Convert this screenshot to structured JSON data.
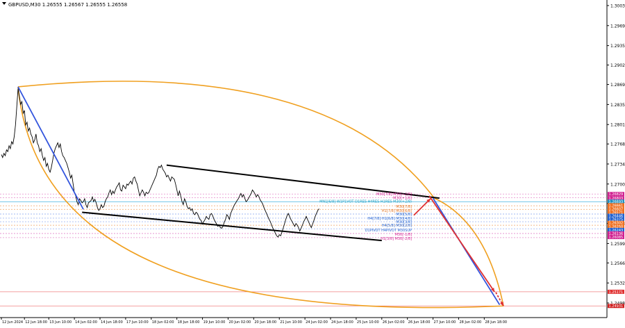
{
  "window": {
    "symbol_info": "GBPUSD,M30  1.26555 1.26567 1.26555 1.26558"
  },
  "chart_data": {
    "type": "line",
    "title": "",
    "xlabel": "",
    "ylabel": "",
    "ylim": [
      1.248,
      1.3045
    ],
    "y_ticks": [
      "1.30030",
      "1.29690",
      "1.29350",
      "1.29020",
      "1.28690",
      "1.28350",
      "1.28010",
      "1.27680",
      "1.27340",
      "1.27000",
      "1.26670",
      "1.26330",
      "1.25990",
      "1.25660",
      "1.25320",
      "1.24980"
    ],
    "x_ticks": [
      {
        "i": 0,
        "label": "12 Jun 2024"
      },
      {
        "i": 18,
        "label": "12 Jun 18:00"
      },
      {
        "i": 37,
        "label": "13 Jun 10:00"
      },
      {
        "i": 57,
        "label": "14 Jun 02:00"
      },
      {
        "i": 77,
        "label": "14 Jun 18:00"
      },
      {
        "i": 97,
        "label": "17 Jun 10:00"
      },
      {
        "i": 117,
        "label": "18 Jun 02:00"
      },
      {
        "i": 137,
        "label": "18 Jun 18:00"
      },
      {
        "i": 157,
        "label": "19 Jun 10:00"
      },
      {
        "i": 177,
        "label": "20 Jun 02:00"
      },
      {
        "i": 197,
        "label": "20 Jun 18:00"
      },
      {
        "i": 217,
        "label": "21 Jun 10:00"
      },
      {
        "i": 237,
        "label": "24 Jun 02:00"
      },
      {
        "i": 257,
        "label": "24 Jun 18:00"
      },
      {
        "i": 277,
        "label": "25 Jun 10:00"
      },
      {
        "i": 297,
        "label": "26 Jun 02:00"
      },
      {
        "i": 317,
        "label": "26 Jun 18:00"
      },
      {
        "i": 337,
        "label": "27 Jun 10:00"
      },
      {
        "i": 357,
        "label": "28 Jun 02:00"
      },
      {
        "i": 377,
        "label": "28 Jun 18:00"
      }
    ],
    "series": [
      {
        "color": "#000000",
        "y": [
          1.275,
          1.2745,
          1.2752,
          1.2748,
          1.2758,
          1.2755,
          1.2765,
          1.276,
          1.2772,
          1.2768,
          1.278,
          1.28,
          1.283,
          1.2862,
          1.285,
          1.2835,
          1.284,
          1.282,
          1.2825,
          1.28,
          1.2805,
          1.279,
          1.2795,
          1.2785,
          1.278,
          1.277,
          1.2775,
          1.2785,
          1.277,
          1.2765,
          1.2755,
          1.276,
          1.2748,
          1.274,
          1.2745,
          1.273,
          1.2735,
          1.2725,
          1.272,
          1.2728,
          1.274,
          1.2752,
          1.276,
          1.2765,
          1.277,
          1.2762,
          1.2768,
          1.2755,
          1.2748,
          1.2745,
          1.274,
          1.2735,
          1.2728,
          1.272,
          1.271,
          1.2715,
          1.27,
          1.2685,
          1.268,
          1.267,
          1.2665,
          1.2675,
          1.2672,
          1.2668,
          1.267,
          1.2675,
          1.2665,
          1.266,
          1.2668,
          1.267,
          1.2672,
          1.2678,
          1.267,
          1.2674,
          1.2668,
          1.266,
          1.2655,
          1.2658,
          1.2665,
          1.266,
          1.2662,
          1.267,
          1.2675,
          1.2678,
          1.2685,
          1.269,
          1.2682,
          1.2688,
          1.2684,
          1.269,
          1.2695,
          1.2698,
          1.2702,
          1.269,
          1.2688,
          1.2698,
          1.2695,
          1.2692,
          1.27,
          1.2698,
          1.2702,
          1.2705,
          1.27,
          1.271,
          1.2712,
          1.2705,
          1.27,
          1.269,
          1.268,
          1.2685,
          1.269,
          1.2686,
          1.268,
          1.2686,
          1.2684,
          1.2685,
          1.269,
          1.2695,
          1.27,
          1.2705,
          1.271,
          1.2715,
          1.2725,
          1.273,
          1.2728,
          1.2732,
          1.2725,
          1.2722,
          1.2718,
          1.2712,
          1.2715,
          1.271,
          1.2705,
          1.2712,
          1.271,
          1.2708,
          1.27,
          1.269,
          1.268,
          1.2688,
          1.268,
          1.267,
          1.2665,
          1.2675,
          1.267,
          1.2662,
          1.2658,
          1.266,
          1.2655,
          1.2658,
          1.265,
          1.2648,
          1.2652,
          1.265,
          1.2645,
          1.264,
          1.2638,
          1.2632,
          1.2636,
          1.264,
          1.2645,
          1.2642,
          1.264,
          1.2648,
          1.265,
          1.2646,
          1.264,
          1.2636,
          1.2632,
          1.2628,
          1.263,
          1.2626,
          1.2625,
          1.2628,
          1.2635,
          1.264,
          1.2648,
          1.2645,
          1.264,
          1.265,
          1.2655,
          1.266,
          1.2665,
          1.2668,
          1.2672,
          1.2675,
          1.268,
          1.2684,
          1.2678,
          1.2682,
          1.2676,
          1.267,
          1.2672,
          1.2676,
          1.268,
          1.2684,
          1.269,
          1.2687,
          1.2683,
          1.2678,
          1.2682,
          1.2679,
          1.2673,
          1.267,
          1.2666,
          1.266,
          1.2655,
          1.265,
          1.2645,
          1.264,
          1.2636,
          1.263,
          1.2625,
          1.2621,
          1.2616,
          1.2612,
          1.261,
          1.2614,
          1.2612,
          1.2618,
          1.2625,
          1.2632,
          1.264,
          1.2646,
          1.265,
          1.2645,
          1.264,
          1.2636,
          1.2632,
          1.2628,
          1.2633,
          1.263,
          1.2626,
          1.262,
          1.2625,
          1.263,
          1.2636,
          1.264,
          1.2645,
          1.264,
          1.2635,
          1.263,
          1.2626,
          1.2632,
          1.2638,
          1.2645,
          1.265,
          1.2655,
          1.2658
        ]
      }
    ],
    "annotations": {
      "channel_top": {
        "from": [
          129,
          1.2732
        ],
        "to": [
          342,
          1.2676
        ],
        "color": "#000000"
      },
      "channel_bottom": {
        "from": [
          63,
          1.2652
        ],
        "to": [
          297,
          1.2604
        ],
        "color": "#000000"
      },
      "blue_down_1": {
        "from": [
          13,
          1.2865
        ],
        "to": [
          64,
          1.2657
        ],
        "color": "#3355dd"
      },
      "blue_down_2": {
        "from": [
          337,
          1.2676
        ],
        "to": [
          389,
          1.2495
        ],
        "color": "#3355dd"
      },
      "red_up": {
        "from": [
          322,
          1.2647
        ],
        "to": [
          335,
          1.2675
        ],
        "color": "#e03030"
      },
      "red_down": {
        "from": [
          334,
          1.268
        ],
        "to": [
          385,
          1.2517
        ],
        "color": "#e03030"
      },
      "red_dash": {
        "from": [
          386,
          1.2516
        ],
        "to": [
          392,
          1.2493
        ],
        "color": "#e03030"
      },
      "ellipse": {
        "color": "#f0a020"
      }
    },
    "level_labels": [
      {
        "text": "M30[7/8] M30[+2/8]",
        "y": 1.2683,
        "color": "#d02090"
      },
      {
        "text": "M30[+1/8]",
        "y": 1.2677,
        "color": "#d02090"
      },
      {
        "text": "MN1[6/8] W1P1VOT D1RES H4RES H1RES M30(+2/8)",
        "y": 1.2671,
        "color": "#20a0c0"
      },
      {
        "text": "M30[7/8]",
        "y": 1.2662,
        "color": "#e07020"
      },
      {
        "text": "H1[7/8] M30[6/8]",
        "y": 1.2655,
        "color": "#e07020"
      },
      {
        "text": "M30[5/8]",
        "y": 1.2649,
        "color": "#2060d0"
      },
      {
        "text": "H4[7/8] H1[6/8] M30[4/8]",
        "y": 1.2642,
        "color": "#2060d0"
      },
      {
        "text": "M30[3/8]",
        "y": 1.2636,
        "color": "#2060d0"
      },
      {
        "text": "H4[5/8] M30[2/8]",
        "y": 1.263,
        "color": "#2060d0"
      },
      {
        "text": "D1PIVOT H4PIVOT M30SUP",
        "y": 1.2622,
        "color": "#2060d0"
      },
      {
        "text": "M30[-1/8]",
        "y": 1.2615,
        "color": "#d02090"
      },
      {
        "text": "H1[3/8] M30[-2/8]",
        "y": 1.2608,
        "color": "#d02090"
      }
    ],
    "right_price_labels": [
      {
        "text": "1.26829",
        "y": 1.2683,
        "bg": "#d02090"
      },
      {
        "text": "1.26803",
        "y": 1.2676,
        "bg": "#d02090"
      },
      {
        "text": "1.26693",
        "y": 1.267,
        "bg": "#2090c0"
      },
      {
        "text": "1.26661",
        "y": 1.2664,
        "bg": "#f07020"
      },
      {
        "text": "1.26607",
        "y": 1.2658,
        "bg": "#f07020"
      },
      {
        "text": "1.26571",
        "y": 1.2652,
        "bg": "#f07020"
      },
      {
        "text": "1.26446",
        "y": 1.2646,
        "bg": "#2060d0"
      },
      {
        "text": "1.26375",
        "y": 1.264,
        "bg": "#2060d0"
      },
      {
        "text": "1.26302",
        "y": 1.2634,
        "bg": "#f07020"
      },
      {
        "text": "1.26250",
        "y": 1.2628,
        "bg": "#f07020"
      },
      {
        "text": "1.26243",
        "y": 1.2622,
        "bg": "#2060d0"
      },
      {
        "text": "1.26136",
        "y": 1.2616,
        "bg": "#d02090"
      },
      {
        "text": "1.26085",
        "y": 1.261,
        "bg": "#d02090"
      },
      {
        "text": "1.25171",
        "y": 1.2517,
        "bg": "#e03030"
      },
      {
        "text": "1.24931",
        "y": 1.2493,
        "bg": "#d02020"
      }
    ],
    "h_levels": [
      {
        "y": 1.2683,
        "color": "#e070c0",
        "style": "dashed"
      },
      {
        "y": 1.2677,
        "color": "#e070c0",
        "style": "dashed"
      },
      {
        "y": 1.267,
        "color": "#40b0e0",
        "style": "solid"
      },
      {
        "y": 1.2663,
        "color": "#f0a060",
        "style": "dashed"
      },
      {
        "y": 1.2657,
        "color": "#f0a060",
        "style": "dashed"
      },
      {
        "y": 1.2649,
        "color": "#80a0f0",
        "style": "dashed"
      },
      {
        "y": 1.2642,
        "color": "#80a0f0",
        "style": "dashed"
      },
      {
        "y": 1.2636,
        "color": "#80a0f0",
        "style": "dashed"
      },
      {
        "y": 1.263,
        "color": "#f0a060",
        "style": "dashed"
      },
      {
        "y": 1.2624,
        "color": "#80a0f0",
        "style": "dashed"
      },
      {
        "y": 1.2616,
        "color": "#e070c0",
        "style": "dashed"
      },
      {
        "y": 1.2609,
        "color": "#e070c0",
        "style": "dashed"
      },
      {
        "y": 1.2517,
        "color": "#f08080",
        "style": "solid"
      },
      {
        "y": 1.2493,
        "color": "#f08080",
        "style": "solid"
      }
    ]
  }
}
